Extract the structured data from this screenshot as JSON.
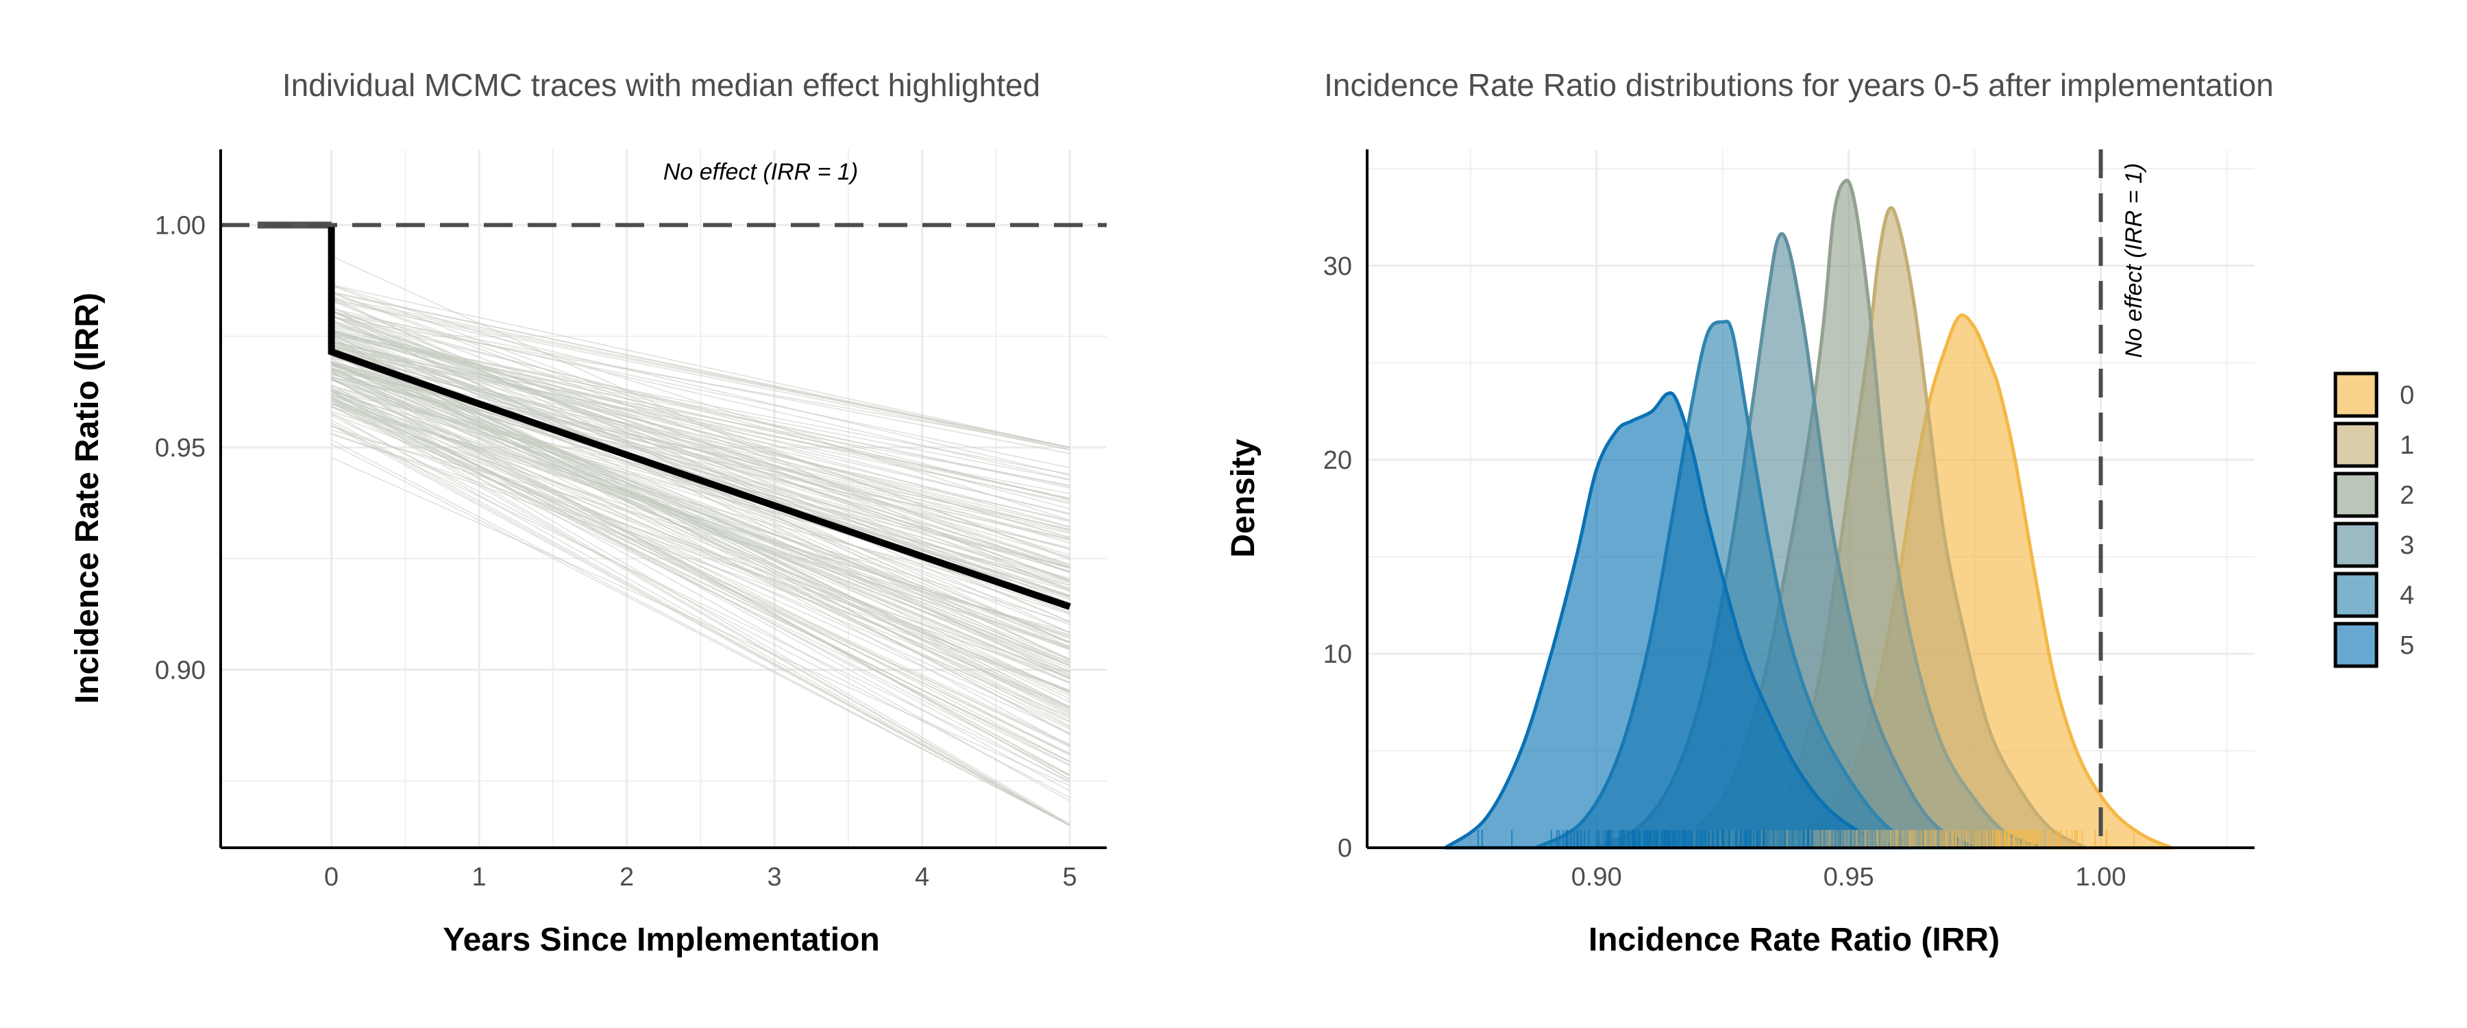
{
  "colors": {
    "background": "#ffffff",
    "grid": "#ebebeb",
    "trace": "#c5cbc0",
    "median": "#000000",
    "reference": "#4d4d4d",
    "year_palette": [
      "#F5B845",
      "#C5AE74",
      "#93A28F",
      "#5F90A0",
      "#2F85B0",
      "#0A72B4"
    ]
  },
  "chart_data": [
    {
      "type": "line",
      "title": "Individual MCMC traces with median effect highlighted",
      "xlabel": "Years Since Implementation",
      "ylabel": "Incidence Rate Ratio (IRR)",
      "xlim": [
        -0.75,
        5.25
      ],
      "ylim": [
        0.86,
        1.017
      ],
      "x_ticks": [
        0,
        1,
        2,
        3,
        4,
        5
      ],
      "x_tick_labels": [
        "0",
        "1",
        "2",
        "3",
        "4",
        "5"
      ],
      "y_ticks": [
        0.9,
        0.95,
        1.0
      ],
      "y_tick_labels": [
        "0.90",
        "0.95",
        "1.00"
      ],
      "grid": true,
      "median_trace": {
        "pre": {
          "x": [
            -0.5,
            0
          ],
          "y": [
            1.0,
            1.0
          ]
        },
        "x": [
          0,
          0,
          1,
          2,
          3,
          4,
          5
        ],
        "y": [
          1.0,
          0.9715,
          0.9598,
          0.9483,
          0.9369,
          0.9255,
          0.9142
        ]
      },
      "traces": {
        "count": 200,
        "x": [
          0,
          5
        ],
        "start_range": [
          0.945,
          0.995
        ],
        "end_range": [
          0.865,
          0.95
        ],
        "style": "light gray-green thin lines"
      },
      "reference_line": {
        "y": 1.0,
        "style": "dashed",
        "label": "No effect (IRR = 1)"
      }
    },
    {
      "type": "area",
      "title": "Incidence Rate Ratio distributions for years 0-5 after implementation",
      "xlabel": "Incidence Rate Ratio (IRR)",
      "ylabel": "Density",
      "xlim": [
        0.8545,
        1.0305
      ],
      "ylim": [
        0,
        36
      ],
      "x_ticks": [
        0.9,
        0.95,
        1.0
      ],
      "x_tick_labels": [
        "0.90",
        "0.95",
        "1.00"
      ],
      "y_ticks": [
        0,
        10,
        20,
        30
      ],
      "y_tick_labels": [
        "0",
        "10",
        "20",
        "30"
      ],
      "grid": true,
      "legend": {
        "position": "right",
        "title": ""
      },
      "reference_line": {
        "x": 1.0,
        "style": "dashed",
        "label": "No effect (IRR = 1)"
      },
      "rug": true,
      "series": [
        {
          "name": "0",
          "x": [
            0.935,
            0.943,
            0.95,
            0.955,
            0.96,
            0.963,
            0.966,
            0.969,
            0.972,
            0.975,
            0.978,
            0.98,
            0.983,
            0.987,
            0.991,
            0.996,
            1.002,
            1.008,
            1.014
          ],
          "y": [
            0,
            1.2,
            3.5,
            7.5,
            14,
            19,
            23,
            25.6,
            27.4,
            26.8,
            25,
            23.5,
            20,
            14,
            8.5,
            4.5,
            2,
            0.7,
            0
          ]
        },
        {
          "name": "1",
          "x": [
            0.925,
            0.933,
            0.939,
            0.944,
            0.948,
            0.951,
            0.954,
            0.956,
            0.958,
            0.96,
            0.963,
            0.966,
            0.969,
            0.973,
            0.978,
            0.984,
            0.99,
            0.997
          ],
          "y": [
            0,
            1,
            3.5,
            8.5,
            15,
            20.5,
            26,
            30.5,
            32.9,
            32,
            28,
            22,
            16,
            11,
            6,
            3,
            1,
            0
          ]
        },
        {
          "name": "2",
          "x": [
            0.912,
            0.92,
            0.927,
            0.933,
            0.938,
            0.942,
            0.945,
            0.947,
            0.949,
            0.951,
            0.954,
            0.957,
            0.96,
            0.964,
            0.969,
            0.975,
            0.981,
            0.988
          ],
          "y": [
            0,
            1,
            3.5,
            8.5,
            15,
            21,
            27,
            32.5,
            34.3,
            33.5,
            28,
            20,
            14,
            9,
            5,
            2.5,
            0.8,
            0
          ]
        },
        {
          "name": "3",
          "x": [
            0.9,
            0.909,
            0.916,
            0.922,
            0.927,
            0.931,
            0.934,
            0.936,
            0.938,
            0.941,
            0.944,
            0.947,
            0.951,
            0.955,
            0.961,
            0.967,
            0.975
          ],
          "y": [
            0,
            1.2,
            4,
            9,
            16,
            23,
            28.5,
            31.4,
            31,
            27,
            21.5,
            16,
            11,
            7,
            3.5,
            1.2,
            0
          ]
        },
        {
          "name": "4",
          "x": [
            0.888,
            0.897,
            0.904,
            0.91,
            0.915,
            0.919,
            0.922,
            0.925,
            0.927,
            0.93,
            0.934,
            0.938,
            0.943,
            0.949,
            0.956,
            0.963
          ],
          "y": [
            0,
            1.3,
            4.5,
            10,
            17,
            23,
            26.5,
            27.1,
            26.5,
            22,
            16,
            11,
            7,
            4,
            1.5,
            0
          ]
        },
        {
          "name": "5",
          "x": [
            0.87,
            0.878,
            0.885,
            0.891,
            0.896,
            0.9,
            0.904,
            0.907,
            0.911,
            0.914,
            0.916,
            0.919,
            0.922,
            0.926,
            0.93,
            0.935,
            0.94,
            0.946,
            0.953,
            0.96
          ],
          "y": [
            0,
            1.5,
            5,
            10,
            15,
            19.5,
            21.5,
            22,
            22.5,
            23.4,
            23,
            20.5,
            17,
            13,
            9.5,
            6.5,
            4,
            2,
            0.7,
            0
          ]
        }
      ]
    }
  ]
}
